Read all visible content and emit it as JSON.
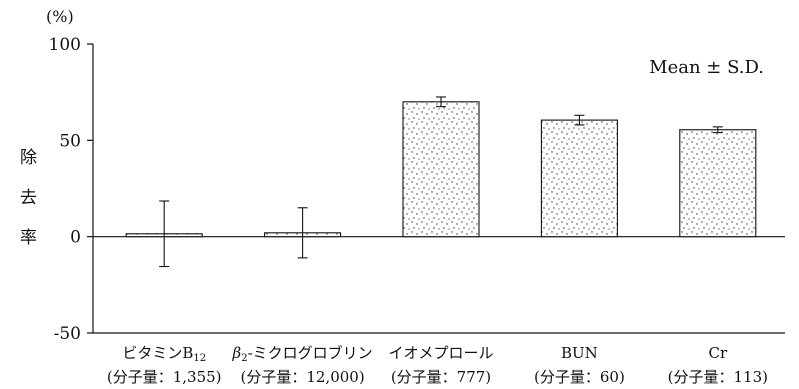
{
  "chart_data": {
    "type": "bar",
    "y_unit": "(%)",
    "ylabel": [
      "除",
      "去",
      "率"
    ],
    "annotation": "Mean ± S.D.",
    "ylim": [
      -50,
      100
    ],
    "yticks": [
      100,
      50,
      0,
      -50
    ],
    "categories": [
      {
        "name": "ビタミンB",
        "sub": "12",
        "mw": "(分子量：1,355)"
      },
      {
        "name": "β",
        "sub": "2",
        "rest": "-ミクログロブリン",
        "mw": "(分子量：12,000)"
      },
      {
        "name": "イオメプロール",
        "mw": "(分子量：777)"
      },
      {
        "name": "BUN",
        "mw": "(分子量：60)"
      },
      {
        "name": "Cr",
        "mw": "(分子量：113)"
      }
    ],
    "values": [
      1.5,
      2,
      70,
      60.5,
      55.5
    ],
    "sd": [
      17,
      13,
      2.5,
      2.5,
      1.5
    ],
    "bar_fill": "stipple",
    "axis_color": "#111111"
  }
}
